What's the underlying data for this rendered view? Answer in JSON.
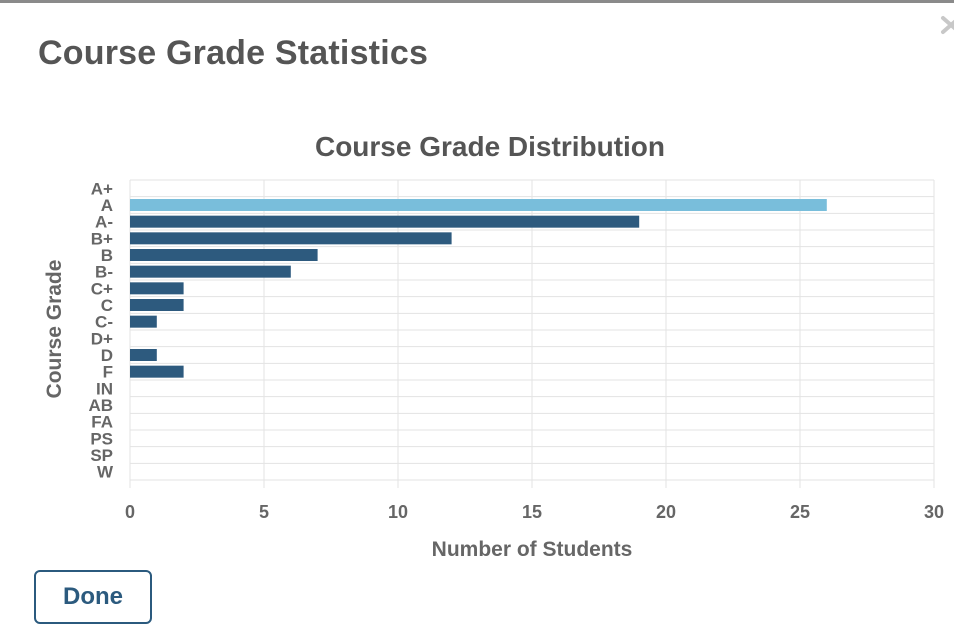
{
  "modal": {
    "title": "Course Grade Statistics",
    "done_label": "Done"
  },
  "icons": {
    "close": "close-icon"
  },
  "colors": {
    "bar": "#2d5a7e",
    "highlight_bar": "#79bedb",
    "done_border": "#2b5a7e",
    "title_text": "#555555"
  },
  "chart_data": {
    "type": "bar",
    "orientation": "horizontal",
    "title": "Course Grade Distribution",
    "xlabel": "Number of Students",
    "ylabel": "Course Grade",
    "categories": [
      "A+",
      "A",
      "A-",
      "B+",
      "B",
      "B-",
      "C+",
      "C",
      "C-",
      "D+",
      "D",
      "F",
      "IN",
      "AB",
      "FA",
      "PS",
      "SP",
      "W"
    ],
    "values": [
      0,
      26,
      19,
      12,
      7,
      6,
      2,
      2,
      1,
      0,
      1,
      2,
      0,
      0,
      0,
      0,
      0,
      0
    ],
    "highlight_category": "A",
    "xlim": [
      0,
      30
    ],
    "xticks": [
      0,
      5,
      10,
      15,
      20,
      25,
      30
    ],
    "grid": true
  }
}
